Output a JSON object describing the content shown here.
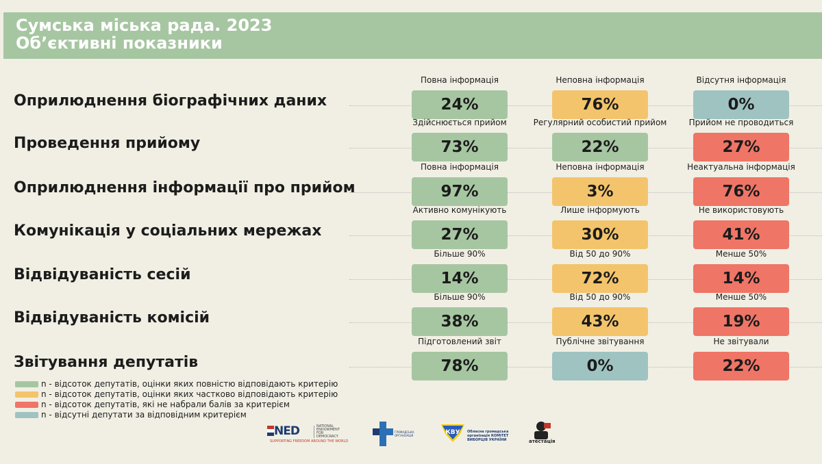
{
  "title": {
    "line1": "Сумська міська рада. 2023",
    "line2": "Об’єктивні показники"
  },
  "rows": [
    {
      "label": "Оприлюднення біографічних даних",
      "cells": [
        {
          "header": "Повна інформація",
          "value": "24%",
          "color": "#a6c6a1"
        },
        {
          "header": "Неповна інформація",
          "value": "76%",
          "color": "#f3c46b"
        },
        {
          "header": "Відсутня інформація",
          "value": "0%",
          "color": "#9fc3c1"
        }
      ]
    },
    {
      "label": "Проведення прийому",
      "cells": [
        {
          "header": "Здійснюється прийом",
          "value": "73%",
          "color": "#a6c6a1"
        },
        {
          "header": "Регулярний особистий прийом",
          "value": "22%",
          "color": "#a6c6a1"
        },
        {
          "header": "Прийом не проводиться",
          "value": "27%",
          "color": "#ef7566"
        }
      ]
    },
    {
      "label": "Оприлюднення інформації про прийом",
      "cells": [
        {
          "header": "Повна інформація",
          "value": "97%",
          "color": "#a6c6a1"
        },
        {
          "header": "Неповна інформація",
          "value": "3%",
          "color": "#f3c46b"
        },
        {
          "header": "Неактуальна інформація",
          "value": "76%",
          "color": "#ef7566"
        }
      ]
    },
    {
      "label": "Комунікація у соціальних мережах",
      "cells": [
        {
          "header": "Активно комунікують",
          "value": "27%",
          "color": "#a6c6a1"
        },
        {
          "header": "Лише інформують",
          "value": "30%",
          "color": "#f3c46b"
        },
        {
          "header": "Не використовують",
          "value": "41%",
          "color": "#ef7566"
        }
      ]
    },
    {
      "label": "Відвідуваність сесій",
      "cells": [
        {
          "header": "Більше 90%",
          "value": "14%",
          "color": "#a6c6a1"
        },
        {
          "header": "Від 50 до 90%",
          "value": "72%",
          "color": "#f3c46b"
        },
        {
          "header": "Менше 50%",
          "value": "14%",
          "color": "#ef7566"
        }
      ]
    },
    {
      "label": "Відвідуваність комісій",
      "cells": [
        {
          "header": "Більше 90%",
          "value": "38%",
          "color": "#a6c6a1"
        },
        {
          "header": "Від 50 до 90%",
          "value": "43%",
          "color": "#f3c46b"
        },
        {
          "header": "Менше 50%",
          "value": "19%",
          "color": "#ef7566"
        }
      ]
    },
    {
      "label": "Звітування депутатів",
      "cells": [
        {
          "header": "Підготовлений звіт",
          "value": "78%",
          "color": "#a6c6a1"
        },
        {
          "header": "Публічне звітування",
          "value": "0%",
          "color": "#9fc3c1"
        },
        {
          "header": "Не звітували",
          "value": "22%",
          "color": "#ef7566"
        }
      ]
    }
  ],
  "legend": [
    {
      "text": "n - відсоток депутатів, оцінки яких повністю відповідають критерію",
      "color": "#a6c6a1"
    },
    {
      "text": "n - відсоток депутатів, оцінки яких частково відповідають критерію",
      "color": "#f3c46b"
    },
    {
      "text": "n - відсоток депутатів, які не набрали балів за критерієм",
      "color": "#ef7566"
    },
    {
      "text": "n - відсутні депутати за відповідним критерієм",
      "color": "#9fc3c1"
    }
  ],
  "logos": {
    "ned": {
      "name": "NED",
      "small": "NATIONAL ENDOWMENT FOR DEMOCRACY",
      "tagline": "SUPPORTING FREEDOM AROUND THE WORLD"
    },
    "cross": {
      "name": "ГРОМАДСЬКА ОРГАНІЗАЦІЯ"
    },
    "cvu": {
      "name": "Обласна громадська організація КОМІТЕТ ВИБОРЦІВ УКРАЇНИ"
    },
    "at": {
      "name": "атестація"
    }
  }
}
